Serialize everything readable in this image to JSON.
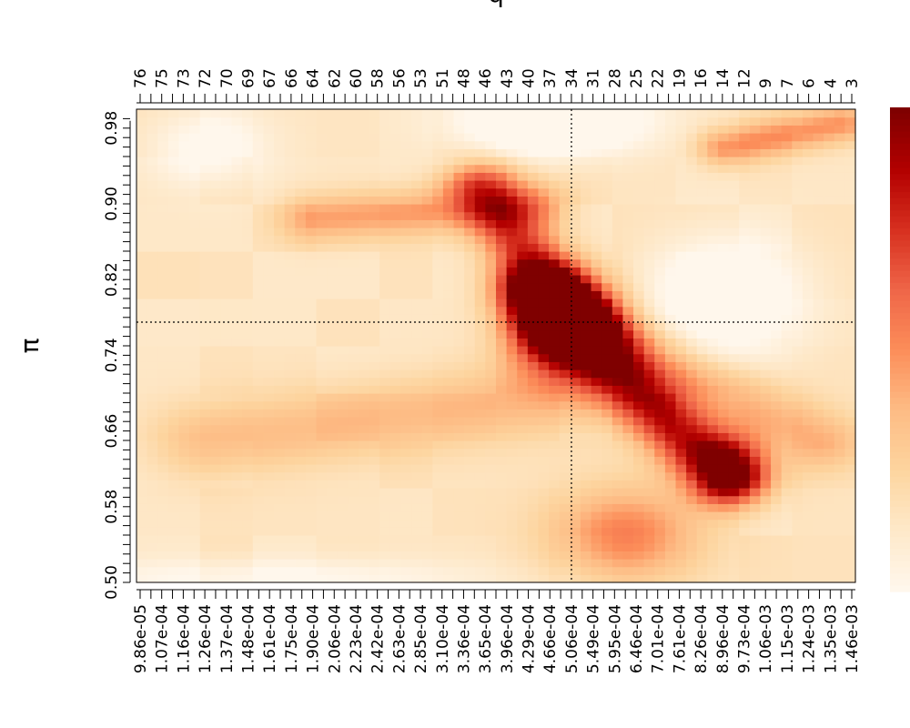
{
  "chart_data": {
    "type": "heatmap",
    "title": "",
    "top_axis_label": "q",
    "xlabel": "",
    "ylabel": "π",
    "x_ticks_bottom": [
      "9.86e-05",
      "1.07e-04",
      "1.16e-04",
      "1.26e-04",
      "1.37e-04",
      "1.48e-04",
      "1.61e-04",
      "1.75e-04",
      "1.90e-04",
      "2.06e-04",
      "2.23e-04",
      "2.42e-04",
      "2.63e-04",
      "2.85e-04",
      "3.10e-04",
      "3.36e-04",
      "3.65e-04",
      "3.96e-04",
      "4.29e-04",
      "4.66e-04",
      "5.06e-04",
      "5.49e-04",
      "5.95e-04",
      "6.46e-04",
      "7.01e-04",
      "7.61e-04",
      "8.26e-04",
      "8.96e-04",
      "9.73e-04",
      "1.06e-03",
      "1.15e-03",
      "1.24e-03",
      "1.35e-03",
      "1.46e-03"
    ],
    "x_ticks_top": [
      "76",
      "75",
      "73",
      "72",
      "70",
      "69",
      "67",
      "66",
      "64",
      "62",
      "60",
      "58",
      "56",
      "53",
      "51",
      "48",
      "46",
      "43",
      "40",
      "37",
      "34",
      "31",
      "28",
      "25",
      "22",
      "19",
      "16",
      "14",
      "12",
      "9",
      "7",
      "6",
      "4",
      "3"
    ],
    "y_ticks": [
      "0.50",
      "0.58",
      "0.66",
      "0.74",
      "0.82",
      "0.90",
      "0.98"
    ],
    "y_range": [
      0.5,
      1.0
    ],
    "crosshair": {
      "x": "5.06e-04",
      "y": 0.775
    },
    "color_scale": [
      "#fff7ec",
      "#fee8c8",
      "#fdd49e",
      "#fdbb84",
      "#fc8d59",
      "#ef6548",
      "#d7301f",
      "#b30000",
      "#7f0000"
    ],
    "grid_size": [
      68,
      60
    ],
    "peak": {
      "x_index": 20,
      "y": 0.775
    }
  }
}
